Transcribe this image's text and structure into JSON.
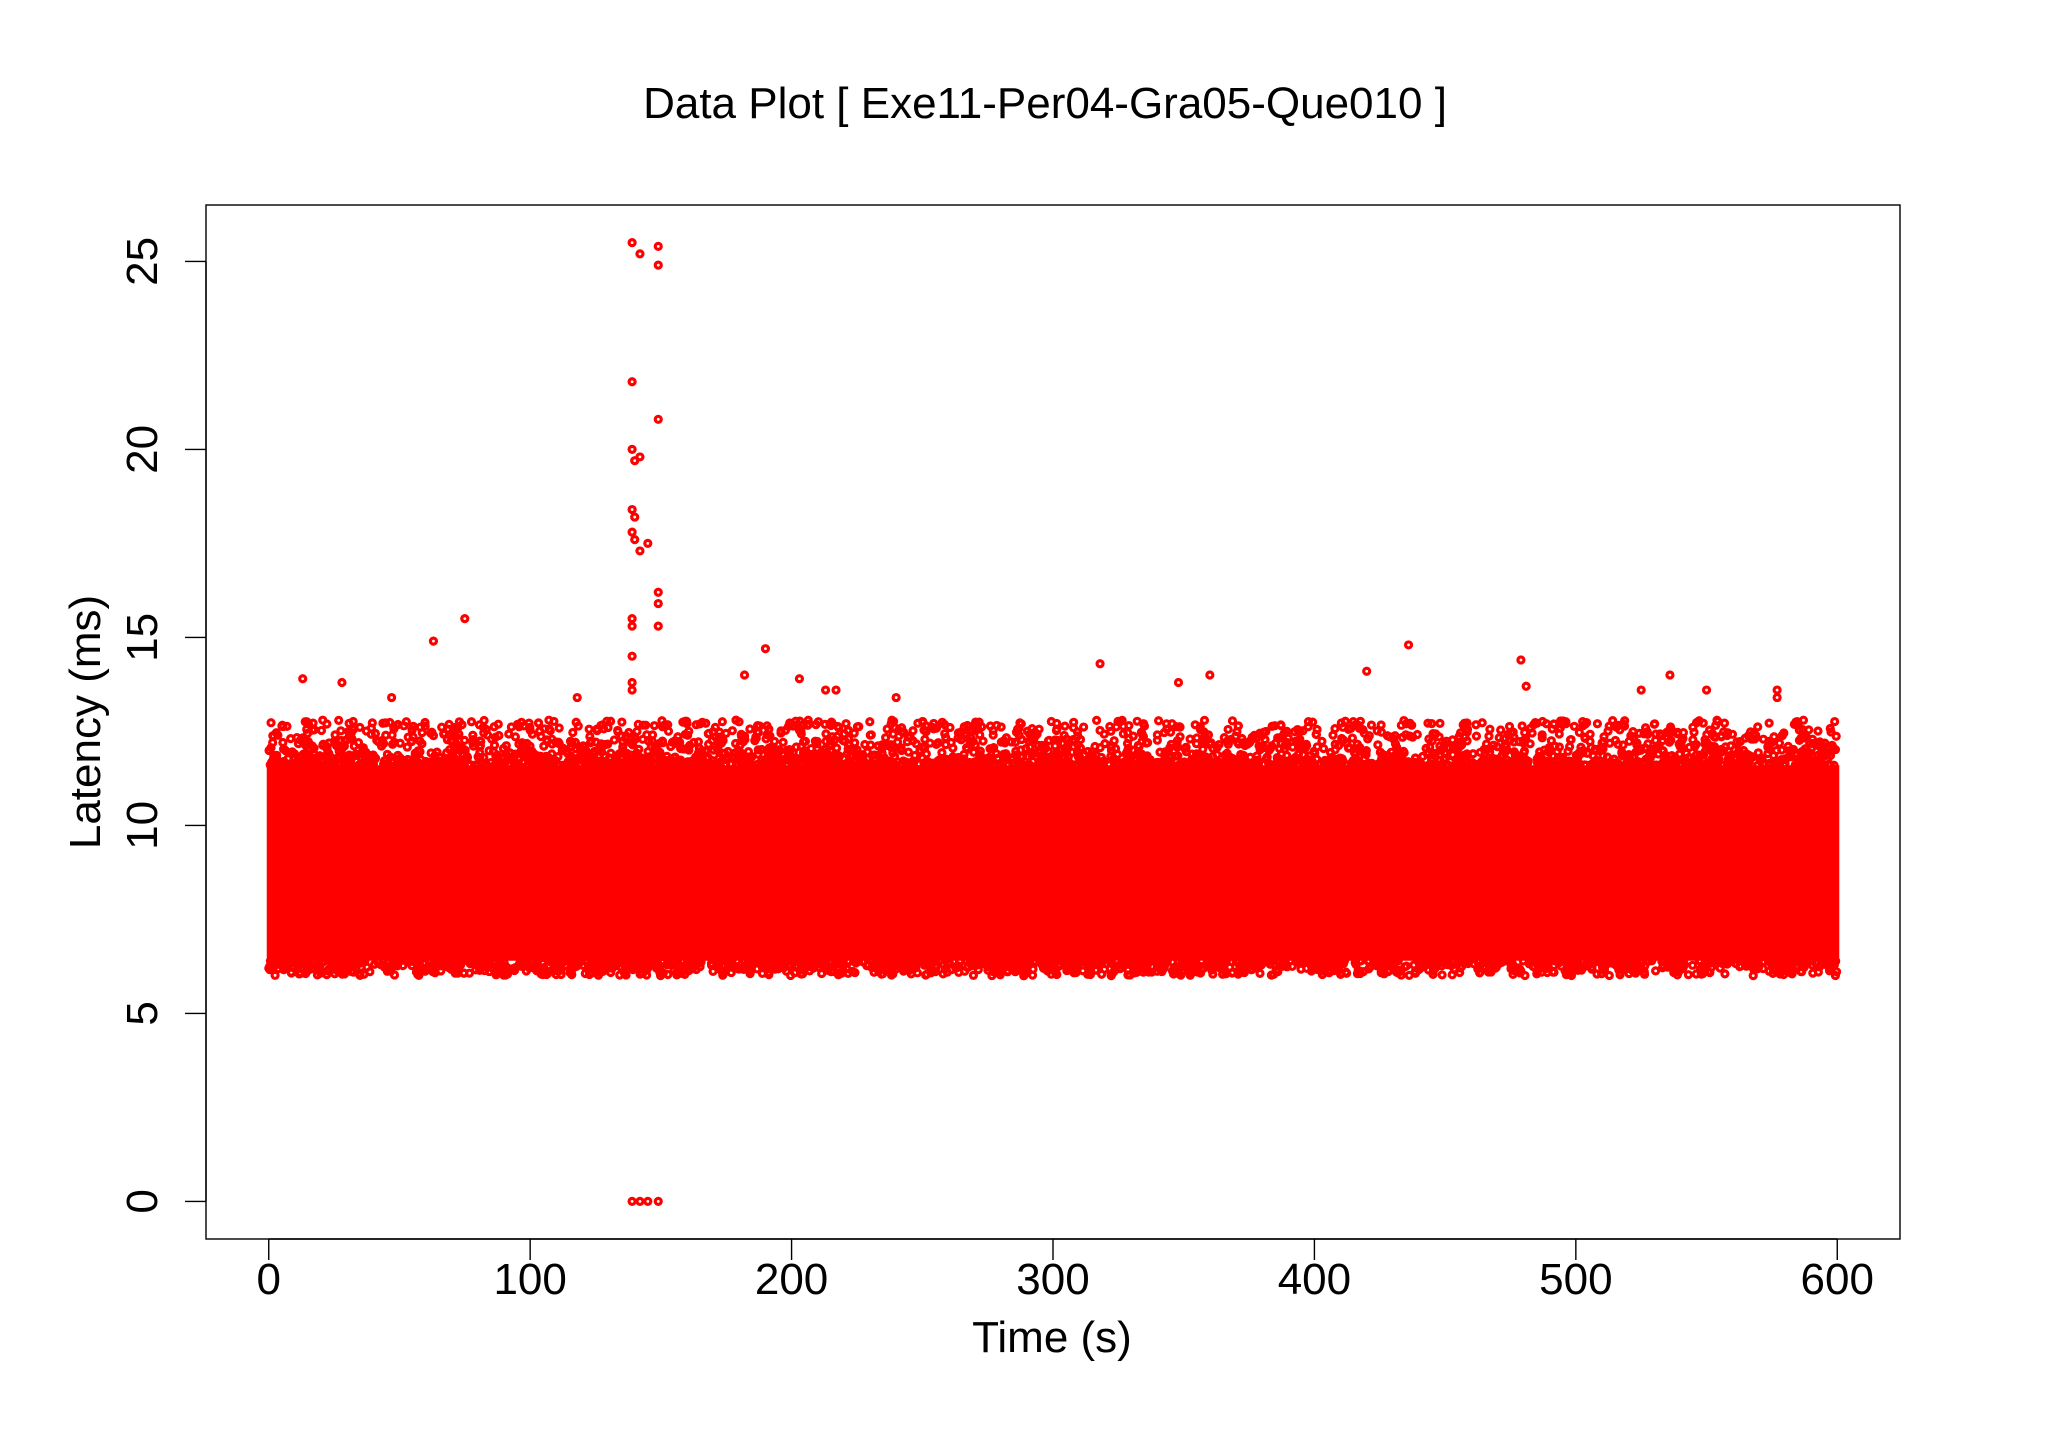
{
  "chart_data": {
    "type": "scatter",
    "title": "Data Plot [ Exe11-Per04-Gra05-Que010 ]",
    "xlabel": "Time (s)",
    "ylabel": "Latency (ms)",
    "xlim": [
      -24,
      624
    ],
    "ylim": [
      -1,
      26.5
    ],
    "x_ticks": [
      0,
      100,
      200,
      300,
      400,
      500,
      600
    ],
    "y_ticks": [
      0,
      5,
      10,
      15,
      20,
      25
    ],
    "grid": false,
    "legend": "none",
    "marker": "open-circle",
    "color": "#ff0000",
    "main_band": {
      "x_range": [
        0,
        600
      ],
      "y_core": [
        6.4,
        11.6
      ],
      "y_typical_max": 12.8,
      "y_min": 6.0
    },
    "outliers": [
      {
        "x": 139,
        "y": 25.5
      },
      {
        "x": 142,
        "y": 25.2
      },
      {
        "x": 149,
        "y": 25.4
      },
      {
        "x": 149,
        "y": 24.9
      },
      {
        "x": 139,
        "y": 21.8
      },
      {
        "x": 149,
        "y": 20.8
      },
      {
        "x": 139,
        "y": 20.0
      },
      {
        "x": 140,
        "y": 19.7
      },
      {
        "x": 142,
        "y": 19.8
      },
      {
        "x": 139,
        "y": 18.4
      },
      {
        "x": 140,
        "y": 18.2
      },
      {
        "x": 139,
        "y": 17.8
      },
      {
        "x": 140,
        "y": 17.6
      },
      {
        "x": 142,
        "y": 17.3
      },
      {
        "x": 145,
        "y": 17.5
      },
      {
        "x": 149,
        "y": 16.2
      },
      {
        "x": 149,
        "y": 15.9
      },
      {
        "x": 149,
        "y": 15.3
      },
      {
        "x": 139,
        "y": 15.5
      },
      {
        "x": 139,
        "y": 15.3
      },
      {
        "x": 139,
        "y": 14.5
      },
      {
        "x": 139,
        "y": 13.8
      },
      {
        "x": 139,
        "y": 13.6
      },
      {
        "x": 63,
        "y": 14.9
      },
      {
        "x": 75,
        "y": 15.5
      },
      {
        "x": 13,
        "y": 13.9
      },
      {
        "x": 28,
        "y": 13.8
      },
      {
        "x": 47,
        "y": 13.4
      },
      {
        "x": 118,
        "y": 13.4
      },
      {
        "x": 190,
        "y": 14.7
      },
      {
        "x": 182,
        "y": 14.0
      },
      {
        "x": 203,
        "y": 13.9
      },
      {
        "x": 213,
        "y": 13.6
      },
      {
        "x": 217,
        "y": 13.6
      },
      {
        "x": 240,
        "y": 13.4
      },
      {
        "x": 318,
        "y": 14.3
      },
      {
        "x": 348,
        "y": 13.8
      },
      {
        "x": 360,
        "y": 14.0
      },
      {
        "x": 420,
        "y": 14.1
      },
      {
        "x": 436,
        "y": 14.8
      },
      {
        "x": 479,
        "y": 14.4
      },
      {
        "x": 481,
        "y": 13.7
      },
      {
        "x": 525,
        "y": 13.6
      },
      {
        "x": 536,
        "y": 14.0
      },
      {
        "x": 550,
        "y": 13.6
      },
      {
        "x": 577,
        "y": 13.6
      },
      {
        "x": 577,
        "y": 13.4
      },
      {
        "x": 139,
        "y": 0
      },
      {
        "x": 142,
        "y": 0
      },
      {
        "x": 145,
        "y": 0
      },
      {
        "x": 149,
        "y": 0
      }
    ]
  }
}
